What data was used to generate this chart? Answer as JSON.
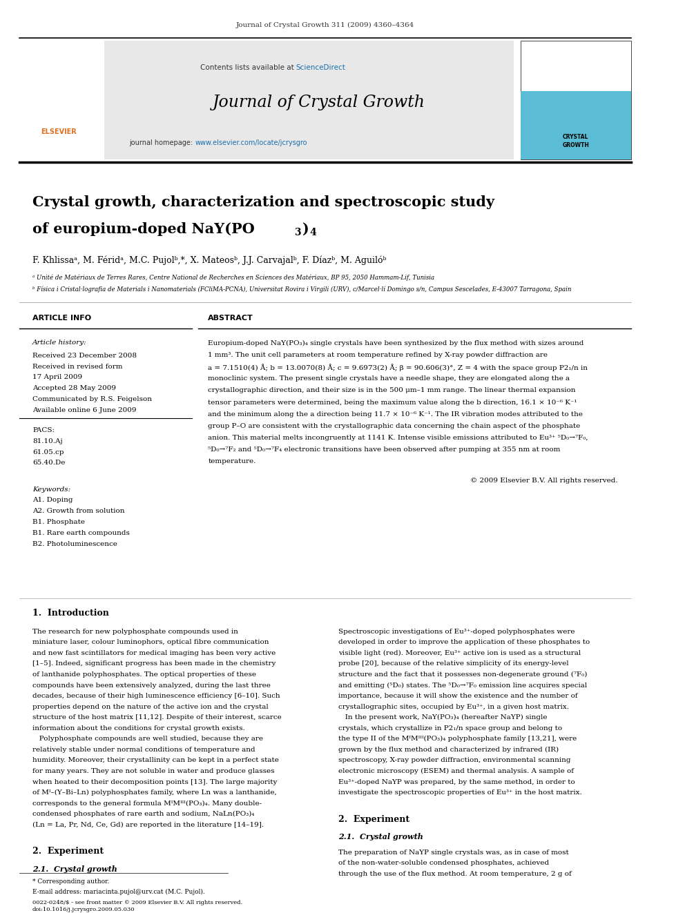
{
  "page_width": 9.92,
  "page_height": 13.23,
  "background_color": "#ffffff",
  "journal_ref": "Journal of Crystal Growth 311 (2009) 4360–4364",
  "header_bg": "#e8e8e8",
  "sciencedirect_color": "#1a6faf",
  "journal_name": "Journal of Crystal Growth",
  "homepage_color": "#1a6faf",
  "title_line1": "Crystal growth, characterization and spectroscopic study",
  "authors": "F. Khlissaᵃ, M. Féridᵃ, M.C. Pujolᵇ,*, X. Mateosᵇ, J.J. Carvajalᵇ, F. Díazᵇ, M. Aguilóᵇ",
  "affil_a": "ᵃ Unité de Matériaux de Terres Rares, Centre National de Recherches en Sciences des Matériaux, BP 95, 2050 Hammam-Lif, Tunisia",
  "affil_b": "ᵇ Física i Cristal·lografia de Materials i Nanomaterials (FCliMA-PCNA), Universitat Rovira i Virgili (URV), c/Marcel·lí Domingo s/n, Campus Sescelades, E-43007 Tarragona, Spain",
  "article_info_title": "ARTICLE INFO",
  "abstract_title": "ABSTRACT",
  "article_history_label": "Article history:",
  "received1": "Received 23 December 2008",
  "received2": "Received in revised form",
  "received2b": "17 April 2009",
  "accepted": "Accepted 28 May 2009",
  "communicated": "Communicated by R.S. Feigelson",
  "available": "Available online 6 June 2009",
  "pacs_label": "PACS:",
  "pacs1": "81.10.Aj",
  "pacs2": "61.05.cp",
  "pacs3": "65.40.De",
  "keywords_label": "Keywords:",
  "kw1": "A1. Doping",
  "kw2": "A2. Growth from solution",
  "kw4": "B1. Phosphate",
  "kw5": "B1. Rare earth compounds",
  "kw6": "B2. Photoluminescence",
  "copyright": "© 2009 Elsevier B.V. All rights reserved.",
  "section1_title": "1.  Introduction",
  "section2_title": "2.  Experiment",
  "section21_title": "2.1.  Crystal growth",
  "footnote_star": "* Corresponding author.",
  "footnote_email": "E-mail address: mariacinta.pujol@urv.cat (M.C. Pujol).",
  "footnote_bottom1": "0022-0248/$ - see front matter © 2009 Elsevier B.V. All rights reserved.",
  "footnote_bottom2": "doi:10.1016/j.jcrysgro.2009.05.030",
  "elsevier_color": "#e07020",
  "header_top_color": "#333333",
  "crystal_growth_logo_bg": "#5bbcd6",
  "abstract_lines": [
    "Europium-doped NaY(PO₃)₄ single crystals have been synthesized by the flux method with sizes around",
    "1 mm³. The unit cell parameters at room temperature refined by X-ray powder diffraction are",
    "a = 7.1510(4) Å; b = 13.0070(8) Å; c = 9.6973(2) Å; β = 90.606(3)°, Z = 4 with the space group P2₁/n in",
    "monoclinic system. The present single crystals have a needle shape, they are elongated along the a",
    "crystallographic direction, and their size is in the 500 μm–1 mm range. The linear thermal expansion",
    "tensor parameters were determined, being the maximum value along the b direction, 16.1 × 10⁻⁶ K⁻¹",
    "and the minimum along the a direction being 11.7 × 10⁻⁶ K⁻¹. The IR vibration modes attributed to the",
    "group P–O are consistent with the crystallographic data concerning the chain aspect of the phosphate",
    "anion. This material melts incongruently at 1141 K. Intense visible emissions attributed to Eu³⁺ ⁵D₀→⁷F₀,",
    "⁵D₀→⁷F₂ and ⁵D₀→⁷F₄ electronic transitions have been observed after pumping at 355 nm at room",
    "temperature."
  ],
  "intro_left_lines": [
    "The research for new polyphosphate compounds used in",
    "miniature laser, colour luminophors, optical fibre communication",
    "and new fast scintillators for medical imaging has been very active",
    "[1–5]. Indeed, significant progress has been made in the chemistry",
    "of lanthanide polyphosphates. The optical properties of these",
    "compounds have been extensively analyzed, during the last three",
    "decades, because of their high luminescence efficiency [6–10]. Such",
    "properties depend on the nature of the active ion and the crystal",
    "structure of the host matrix [11,12]. Despite of their interest, scarce",
    "information about the conditions for crystal growth exists.",
    "   Polyphosphate compounds are well studied, because they are",
    "relatively stable under normal conditions of temperature and",
    "humidity. Moreover, their crystallinity can be kept in a perfect state",
    "for many years. They are not soluble in water and produce glasses",
    "when heated to their decomposition points [13]. The large majority",
    "of Mᴵ–(Y–Bi–Ln) polyphosphates family, where Ln was a lanthanide,",
    "corresponds to the general formula MᴵMᴵᴵᴵ(PO₃)₄. Many double-",
    "condensed phosphates of rare earth and sodium, NaLn(PO₃)₄",
    "(Ln = La, Pr, Nd, Ce, Gd) are reported in the literature [14–19]."
  ],
  "intro_right_lines": [
    "Spectroscopic investigations of Eu³⁺-doped polyphosphates were",
    "developed in order to improve the application of these phosphates to",
    "visible light (red). Moreover, Eu³⁺ active ion is used as a structural",
    "probe [20], because of the relative simplicity of its energy-level",
    "structure and the fact that it possesses non-degenerate ground (⁷F₀)",
    "and emitting (⁵D₀) states. The ⁵D₀→⁷F₀ emission line acquires special",
    "importance, because it will show the existence and the number of",
    "crystallographic sites, occupied by Eu³⁺, in a given host matrix.",
    "   In the present work, NaY(PO₃)₄ (hereafter NaYP) single",
    "crystals, which crystallize in P2₁/n space group and belong to",
    "the type II of the MᴵMᴵᴵᴵ(PO₃)₄ polyphosphate family [13,21], were",
    "grown by the flux method and characterized by infrared (IR)",
    "spectroscopy, X-ray powder diffraction, environmental scanning",
    "electronic microscopy (ESEM) and thermal analysis. A sample of",
    "Eu³⁺-doped NaYP was prepared, by the same method, in order to",
    "investigate the spectroscopic properties of Eu³⁺ in the host matrix."
  ],
  "crystal_growth_lines": [
    "The preparation of NaYP single crystals was, as in case of most",
    "of the non-water-soluble condensed phosphates, achieved",
    "through the use of the flux method. At room temperature, 2 g of"
  ]
}
